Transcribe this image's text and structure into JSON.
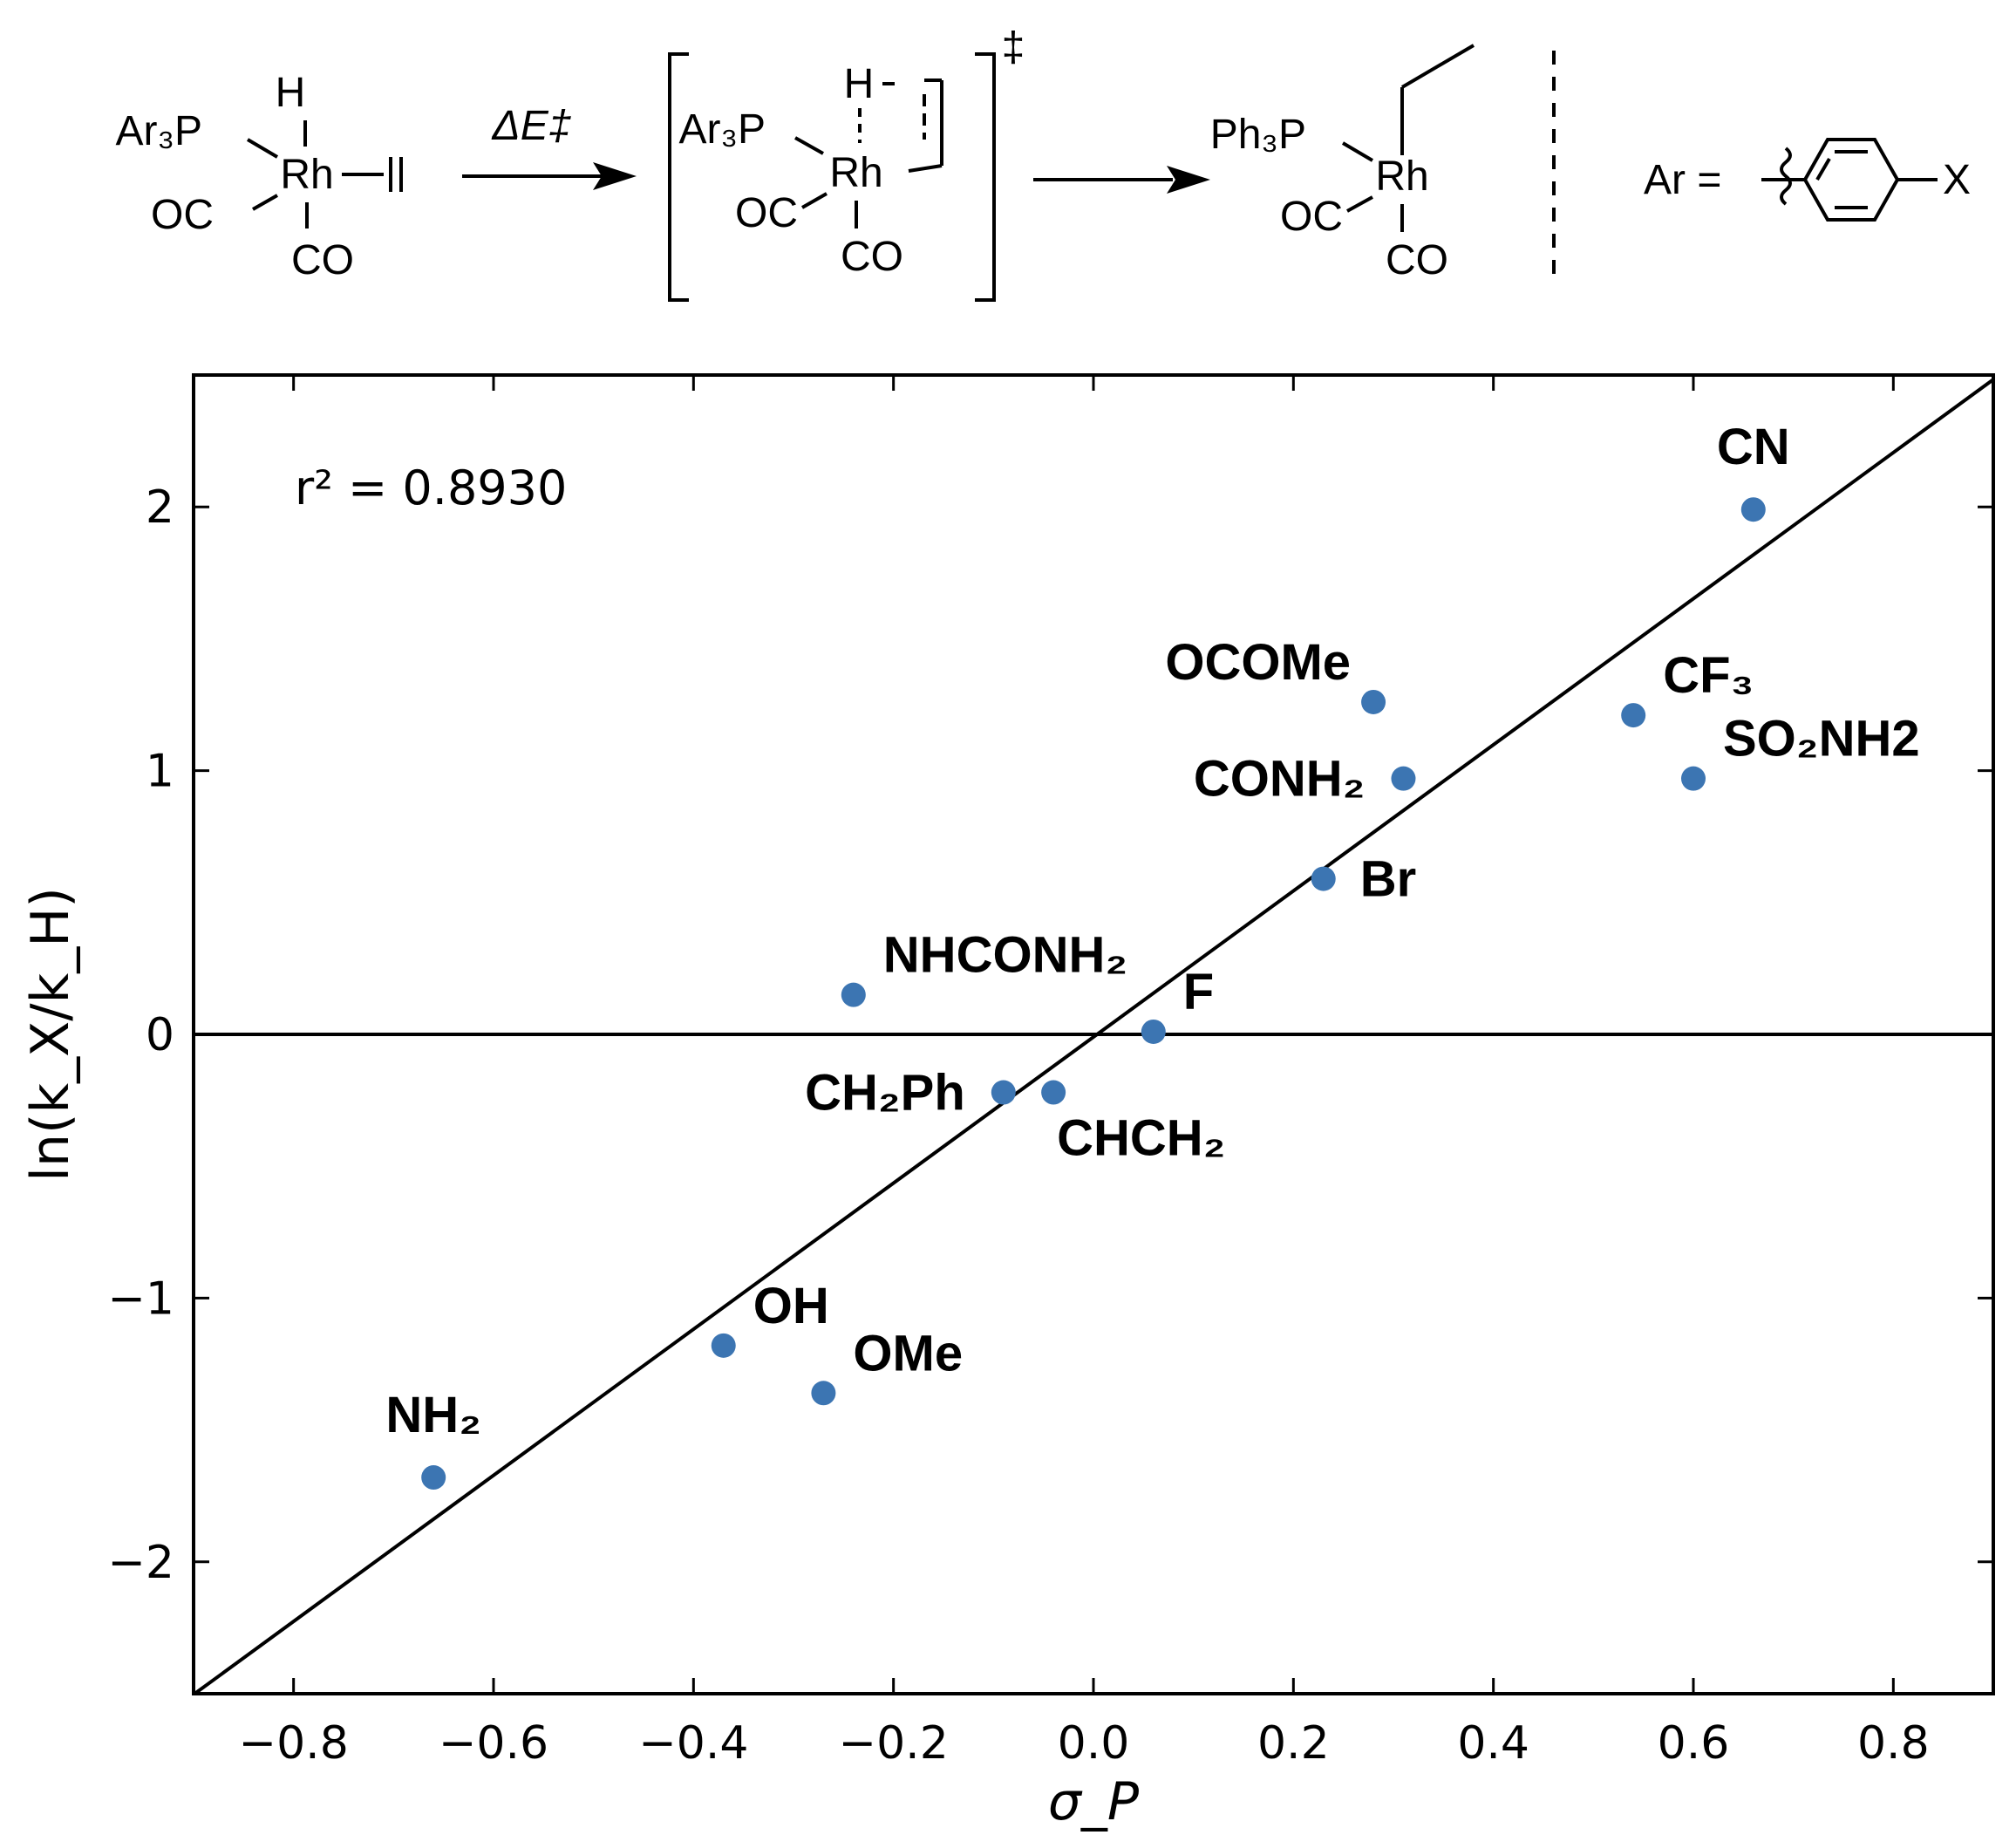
{
  "scheme": {
    "reactant": {
      "h": "H",
      "ligand": "Ar₃P",
      "metal": "Rh",
      "co_left": "OC",
      "co_bottom": "CO"
    },
    "arrow_label": "ΔE‡",
    "ts": {
      "h": "H",
      "ligand": "Ar₃P",
      "metal": "Rh",
      "co_left": "OC",
      "co_bottom": "CO",
      "mark": "‡"
    },
    "product": {
      "ligand": "Ph₃P",
      "metal": "Rh",
      "co_left": "OC",
      "co_bottom": "CO"
    },
    "ar_def": {
      "label": "Ar =",
      "substituent": "X"
    }
  },
  "chart_data": {
    "type": "scatter",
    "xlabel": "σ_P",
    "ylabel": "ln(k_X/k_H)",
    "xlim": [
      -0.9,
      0.9
    ],
    "ylim": [
      -2.5,
      2.5
    ],
    "xticks": [
      -0.8,
      -0.6,
      -0.4,
      -0.2,
      0.0,
      0.2,
      0.4,
      0.6,
      0.8
    ],
    "yticks": [
      -2,
      -1,
      0,
      1,
      2
    ],
    "xtick_labels": [
      "−0.8",
      "−0.6",
      "−0.4",
      "−0.2",
      "0.0",
      "0.2",
      "0.4",
      "0.6",
      "0.8"
    ],
    "ytick_labels": [
      "−2",
      "−1",
      "0",
      "1",
      "2"
    ],
    "annotation": "r² = 0.8930",
    "marker_color": "#3c75b2",
    "fit_line": {
      "slope": 2.77,
      "intercept": -0.01
    },
    "reference_line_y": 0,
    "points": [
      {
        "label": "NH₂",
        "x": -0.66,
        "y": -1.68,
        "anchor": "above"
      },
      {
        "label": "OH",
        "x": -0.37,
        "y": -1.18,
        "anchor": "upper-right"
      },
      {
        "label": "OMe",
        "x": -0.27,
        "y": -1.36,
        "anchor": "upper-right"
      },
      {
        "label": "NHCONH₂",
        "x": -0.24,
        "y": 0.15,
        "anchor": "upper-right"
      },
      {
        "label": "CH₂Ph",
        "x": -0.09,
        "y": -0.22,
        "anchor": "left"
      },
      {
        "label": "CHCH₂",
        "x": -0.04,
        "y": -0.22,
        "anchor": "lower-right"
      },
      {
        "label": "F",
        "x": 0.06,
        "y": 0.01,
        "anchor": "upper-right"
      },
      {
        "label": "Br",
        "x": 0.23,
        "y": 0.59,
        "anchor": "right"
      },
      {
        "label": "OCOMe",
        "x": 0.28,
        "y": 1.26,
        "anchor": "upper-left"
      },
      {
        "label": "CONH₂",
        "x": 0.31,
        "y": 0.97,
        "anchor": "left"
      },
      {
        "label": "CF₃",
        "x": 0.54,
        "y": 1.21,
        "anchor": "upper-right"
      },
      {
        "label": "SO₂NH2",
        "x": 0.6,
        "y": 0.97,
        "anchor": "upper-right"
      },
      {
        "label": "CN",
        "x": 0.66,
        "y": 1.99,
        "anchor": "above"
      }
    ]
  }
}
